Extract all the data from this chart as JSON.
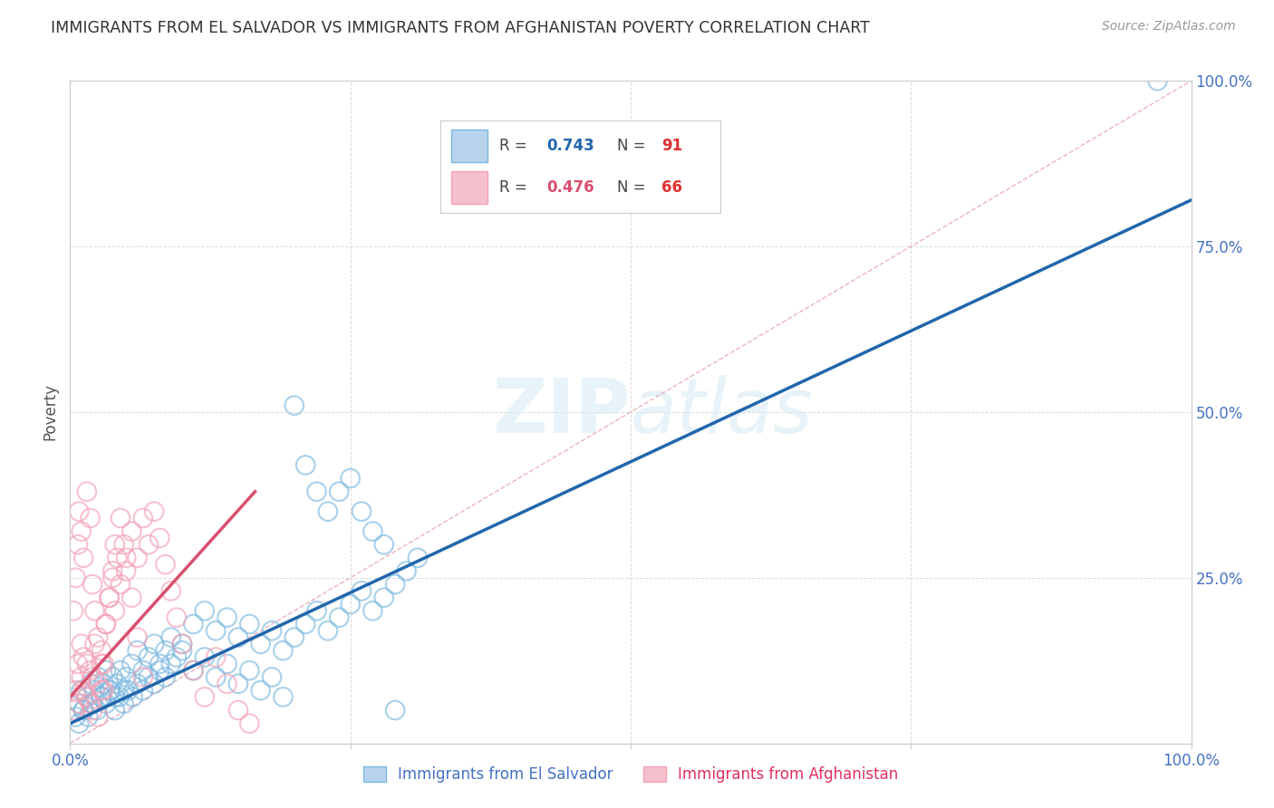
{
  "title": "IMMIGRANTS FROM EL SALVADOR VS IMMIGRANTS FROM AFGHANISTAN POVERTY CORRELATION CHART",
  "source": "Source: ZipAtlas.com",
  "ylabel": "Poverty",
  "xlim": [
    0,
    1
  ],
  "ylim": [
    0,
    1
  ],
  "xticks": [
    0.0,
    0.25,
    0.5,
    0.75,
    1.0
  ],
  "yticks": [
    0.0,
    0.25,
    0.5,
    0.75,
    1.0
  ],
  "xticklabels": [
    "0.0%",
    "",
    "",
    "",
    "100.0%"
  ],
  "yticklabels_right": [
    "0.0%",
    "25.0%",
    "50.0%",
    "75.0%",
    "100.0%"
  ],
  "watermark": "ZIPatlas",
  "legend_entries": [
    {
      "label_r": "R = 0.743",
      "label_n": "N = 91",
      "color": "#a8c8e8"
    },
    {
      "label_r": "R = 0.476",
      "label_n": "N = 66",
      "color": "#f4a0b4"
    }
  ],
  "blue_color": "#7ab8e0",
  "blue_line_color": "#2166ac",
  "pink_color": "#f4a0b4",
  "pink_line_color": "#d94f6e",
  "background_color": "#ffffff",
  "grid_color": "#cccccc",
  "title_color": "#333333",
  "axis_color": "#4472c4",
  "blue_line": {
    "x0": 0.0,
    "y0": 0.03,
    "x1": 1.0,
    "y1": 0.82
  },
  "pink_line": {
    "x0": 0.0,
    "y0": 0.07,
    "x1": 0.165,
    "y1": 0.38
  },
  "diagonal_line": {
    "x0": 0.0,
    "y0": 0.0,
    "x1": 1.0,
    "y1": 1.0
  },
  "blue_x": [
    0.005,
    0.008,
    0.01,
    0.012,
    0.015,
    0.018,
    0.02,
    0.022,
    0.025,
    0.028,
    0.03,
    0.032,
    0.035,
    0.038,
    0.04,
    0.042,
    0.045,
    0.048,
    0.05,
    0.055,
    0.06,
    0.065,
    0.07,
    0.075,
    0.08,
    0.085,
    0.09,
    0.095,
    0.1,
    0.11,
    0.12,
    0.13,
    0.14,
    0.15,
    0.16,
    0.17,
    0.18,
    0.19,
    0.2,
    0.21,
    0.22,
    0.23,
    0.24,
    0.25,
    0.26,
    0.27,
    0.28,
    0.29,
    0.3,
    0.31,
    0.008,
    0.012,
    0.016,
    0.02,
    0.024,
    0.028,
    0.032,
    0.036,
    0.04,
    0.044,
    0.048,
    0.052,
    0.056,
    0.06,
    0.065,
    0.07,
    0.075,
    0.08,
    0.085,
    0.09,
    0.1,
    0.11,
    0.12,
    0.13,
    0.14,
    0.15,
    0.16,
    0.17,
    0.18,
    0.19,
    0.2,
    0.21,
    0.22,
    0.23,
    0.24,
    0.25,
    0.26,
    0.27,
    0.28,
    0.29,
    0.97
  ],
  "blue_y": [
    0.04,
    0.06,
    0.08,
    0.05,
    0.07,
    0.09,
    0.06,
    0.08,
    0.1,
    0.07,
    0.09,
    0.11,
    0.08,
    0.1,
    0.07,
    0.09,
    0.11,
    0.08,
    0.1,
    0.12,
    0.14,
    0.11,
    0.13,
    0.15,
    0.12,
    0.14,
    0.16,
    0.13,
    0.15,
    0.18,
    0.2,
    0.17,
    0.19,
    0.16,
    0.18,
    0.15,
    0.17,
    0.14,
    0.16,
    0.18,
    0.2,
    0.17,
    0.19,
    0.21,
    0.23,
    0.2,
    0.22,
    0.24,
    0.26,
    0.28,
    0.03,
    0.05,
    0.04,
    0.06,
    0.05,
    0.07,
    0.06,
    0.08,
    0.05,
    0.07,
    0.06,
    0.08,
    0.07,
    0.09,
    0.08,
    0.1,
    0.09,
    0.11,
    0.1,
    0.12,
    0.14,
    0.11,
    0.13,
    0.1,
    0.12,
    0.09,
    0.11,
    0.08,
    0.1,
    0.07,
    0.51,
    0.42,
    0.38,
    0.35,
    0.38,
    0.4,
    0.35,
    0.32,
    0.3,
    0.05,
    1.0
  ],
  "pink_x": [
    0.003,
    0.005,
    0.007,
    0.008,
    0.01,
    0.01,
    0.012,
    0.012,
    0.015,
    0.015,
    0.018,
    0.018,
    0.02,
    0.02,
    0.022,
    0.025,
    0.025,
    0.028,
    0.028,
    0.03,
    0.032,
    0.035,
    0.038,
    0.04,
    0.042,
    0.045,
    0.048,
    0.05,
    0.055,
    0.06,
    0.065,
    0.07,
    0.075,
    0.08,
    0.085,
    0.09,
    0.095,
    0.1,
    0.11,
    0.12,
    0.13,
    0.14,
    0.15,
    0.16,
    0.003,
    0.005,
    0.007,
    0.008,
    0.01,
    0.012,
    0.015,
    0.018,
    0.02,
    0.022,
    0.025,
    0.028,
    0.03,
    0.032,
    0.035,
    0.038,
    0.04,
    0.045,
    0.05,
    0.055,
    0.06,
    0.065
  ],
  "pink_y": [
    0.05,
    0.08,
    0.12,
    0.06,
    0.1,
    0.15,
    0.08,
    0.13,
    0.07,
    0.12,
    0.06,
    0.11,
    0.05,
    0.1,
    0.15,
    0.04,
    0.09,
    0.08,
    0.14,
    0.12,
    0.18,
    0.22,
    0.25,
    0.2,
    0.28,
    0.24,
    0.3,
    0.26,
    0.32,
    0.28,
    0.34,
    0.3,
    0.35,
    0.31,
    0.27,
    0.23,
    0.19,
    0.15,
    0.11,
    0.07,
    0.13,
    0.09,
    0.05,
    0.03,
    0.2,
    0.25,
    0.3,
    0.35,
    0.32,
    0.28,
    0.38,
    0.34,
    0.24,
    0.2,
    0.16,
    0.12,
    0.08,
    0.18,
    0.22,
    0.26,
    0.3,
    0.34,
    0.28,
    0.22,
    0.16,
    0.1
  ]
}
